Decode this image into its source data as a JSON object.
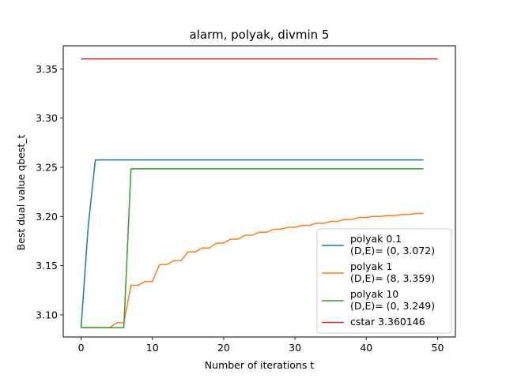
{
  "chart_data": {
    "type": "line",
    "title": "alarm, polyak, divmin 5",
    "xlabel": "Number of iterations t",
    "ylabel": "Best dual value qbest_t",
    "xlim": [
      -2.5,
      52.5
    ],
    "ylim": [
      3.0775,
      3.3735
    ],
    "xticks": [
      0,
      10,
      20,
      30,
      40,
      50
    ],
    "xtick_labels": [
      "0",
      "10",
      "20",
      "30",
      "40",
      "50"
    ],
    "yticks": [
      3.1,
      3.15,
      3.2,
      3.25,
      3.3,
      3.35
    ],
    "ytick_labels": [
      "3.10",
      "3.15",
      "3.20",
      "3.25",
      "3.30",
      "3.35"
    ],
    "grid": false,
    "legend_position": "lower-right",
    "series": [
      {
        "name": "polyak 0.1",
        "legend_lines": [
          "polyak 0.1",
          "(D,E)= (0, 3.072)"
        ],
        "color": "#1f77b4",
        "x": [
          0,
          1,
          2,
          48
        ],
        "y": [
          3.087,
          3.19,
          3.2575,
          3.2575
        ]
      },
      {
        "name": "polyak 1",
        "legend_lines": [
          "polyak 1",
          "(D,E)= (8, 3.359)"
        ],
        "color": "#ff7f0e",
        "x": [
          0,
          1,
          2,
          3,
          4,
          5,
          6,
          7,
          8,
          9,
          10,
          11,
          12,
          13,
          14,
          15,
          16,
          17,
          18,
          19,
          20,
          21,
          22,
          23,
          24,
          25,
          26,
          27,
          28,
          29,
          30,
          31,
          32,
          33,
          34,
          35,
          36,
          37,
          38,
          39,
          40,
          41,
          42,
          43,
          44,
          45,
          46,
          47,
          48
        ],
        "y": [
          3.087,
          3.087,
          3.087,
          3.087,
          3.087,
          3.092,
          3.092,
          3.13,
          3.13,
          3.134,
          3.134,
          3.151,
          3.151,
          3.155,
          3.155,
          3.164,
          3.164,
          3.168,
          3.168,
          3.173,
          3.173,
          3.177,
          3.177,
          3.181,
          3.181,
          3.184,
          3.184,
          3.187,
          3.187,
          3.189,
          3.189,
          3.191,
          3.191,
          3.193,
          3.193,
          3.195,
          3.195,
          3.197,
          3.197,
          3.199,
          3.199,
          3.2,
          3.2,
          3.201,
          3.201,
          3.202,
          3.202,
          3.203,
          3.203
        ]
      },
      {
        "name": "polyak 10",
        "legend_lines": [
          "polyak 10",
          "(D,E)= (0, 3.249)"
        ],
        "color": "#2ca02c",
        "x": [
          0,
          6,
          7,
          48
        ],
        "y": [
          3.087,
          3.087,
          3.2485,
          3.2485
        ]
      },
      {
        "name": "cstar 3.360146",
        "legend_lines": [
          "cstar 3.360146"
        ],
        "color": "#d62728",
        "x": [
          0,
          50
        ],
        "y": [
          3.360146,
          3.360146
        ]
      }
    ]
  }
}
